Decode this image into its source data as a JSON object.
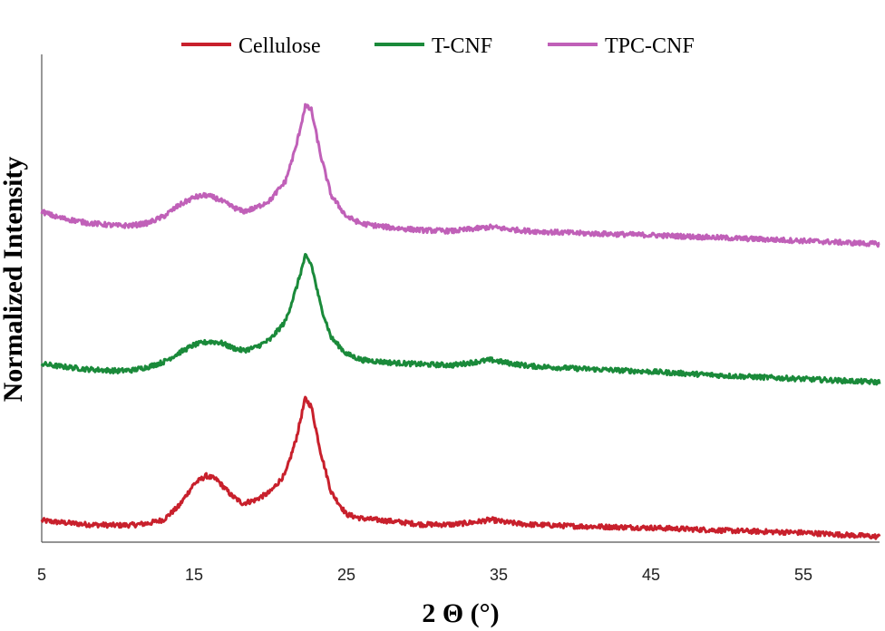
{
  "chart_data": {
    "type": "line",
    "title": "",
    "xlabel": "2 Θ (°)",
    "ylabel": "Normalized Intensity",
    "xlim": [
      5,
      60
    ],
    "ylim": [
      0,
      1.2
    ],
    "xticks": [
      5,
      15,
      25,
      35,
      45,
      55
    ],
    "ytick_labels_shown": false,
    "grid": false,
    "legend_position": "top-center",
    "series": [
      {
        "name": "Cellulose",
        "color": "#c8202c",
        "offset": 0.0,
        "points": [
          [
            5,
            0.04
          ],
          [
            6,
            0.036
          ],
          [
            8,
            0.03
          ],
          [
            10,
            0.028
          ],
          [
            11,
            0.029
          ],
          [
            12,
            0.033
          ],
          [
            13,
            0.042
          ],
          [
            14,
            0.075
          ],
          [
            15,
            0.13
          ],
          [
            15.8,
            0.15
          ],
          [
            16.5,
            0.14
          ],
          [
            17.5,
            0.1
          ],
          [
            18.2,
            0.082
          ],
          [
            19,
            0.09
          ],
          [
            20,
            0.11
          ],
          [
            21,
            0.155
          ],
          [
            21.7,
            0.24
          ],
          [
            22.3,
            0.34
          ],
          [
            22.7,
            0.32
          ],
          [
            23.3,
            0.21
          ],
          [
            24,
            0.11
          ],
          [
            25,
            0.055
          ],
          [
            26,
            0.045
          ],
          [
            28,
            0.038
          ],
          [
            30,
            0.03
          ],
          [
            32,
            0.03
          ],
          [
            33.5,
            0.036
          ],
          [
            34.5,
            0.042
          ],
          [
            35.5,
            0.035
          ],
          [
            37,
            0.03
          ],
          [
            40,
            0.026
          ],
          [
            45,
            0.022
          ],
          [
            48,
            0.018
          ],
          [
            50,
            0.015
          ],
          [
            55,
            0.01
          ],
          [
            60,
            0.0
          ]
        ]
      },
      {
        "name": "T-CNF",
        "color": "#1a8a3a",
        "offset": 0.38,
        "points": [
          [
            5,
            0.045
          ],
          [
            6,
            0.04
          ],
          [
            8,
            0.032
          ],
          [
            10,
            0.028
          ],
          [
            11,
            0.03
          ],
          [
            12,
            0.038
          ],
          [
            13,
            0.05
          ],
          [
            14,
            0.072
          ],
          [
            15,
            0.092
          ],
          [
            16,
            0.1
          ],
          [
            16.7,
            0.098
          ],
          [
            17.5,
            0.085
          ],
          [
            18.2,
            0.078
          ],
          [
            19,
            0.085
          ],
          [
            20,
            0.105
          ],
          [
            21,
            0.15
          ],
          [
            21.7,
            0.23
          ],
          [
            22.3,
            0.31
          ],
          [
            22.7,
            0.29
          ],
          [
            23.3,
            0.19
          ],
          [
            24,
            0.11
          ],
          [
            25,
            0.07
          ],
          [
            26,
            0.055
          ],
          [
            28,
            0.048
          ],
          [
            30,
            0.044
          ],
          [
            32,
            0.042
          ],
          [
            33.5,
            0.05
          ],
          [
            34.5,
            0.055
          ],
          [
            35.5,
            0.048
          ],
          [
            37,
            0.04
          ],
          [
            40,
            0.034
          ],
          [
            45,
            0.026
          ],
          [
            50,
            0.016
          ],
          [
            55,
            0.008
          ],
          [
            60,
            0.0
          ]
        ]
      },
      {
        "name": "TPC-CNF",
        "color": "#c060b8",
        "offset": 0.72,
        "points": [
          [
            5,
            0.08
          ],
          [
            6,
            0.066
          ],
          [
            8,
            0.052
          ],
          [
            10,
            0.045
          ],
          [
            11,
            0.046
          ],
          [
            12,
            0.052
          ],
          [
            13,
            0.068
          ],
          [
            14,
            0.095
          ],
          [
            15,
            0.115
          ],
          [
            15.8,
            0.12
          ],
          [
            16.5,
            0.112
          ],
          [
            17.5,
            0.092
          ],
          [
            18.2,
            0.08
          ],
          [
            19,
            0.088
          ],
          [
            20,
            0.108
          ],
          [
            21,
            0.155
          ],
          [
            21.7,
            0.24
          ],
          [
            22.3,
            0.34
          ],
          [
            22.7,
            0.33
          ],
          [
            23.3,
            0.22
          ],
          [
            24,
            0.12
          ],
          [
            25,
            0.068
          ],
          [
            26,
            0.05
          ],
          [
            28,
            0.04
          ],
          [
            30,
            0.034
          ],
          [
            32,
            0.032
          ],
          [
            33.5,
            0.038
          ],
          [
            34.5,
            0.042
          ],
          [
            35.5,
            0.037
          ],
          [
            37,
            0.032
          ],
          [
            40,
            0.027
          ],
          [
            45,
            0.022
          ],
          [
            50,
            0.015
          ],
          [
            55,
            0.008
          ],
          [
            60,
            0.0
          ]
        ]
      }
    ]
  }
}
